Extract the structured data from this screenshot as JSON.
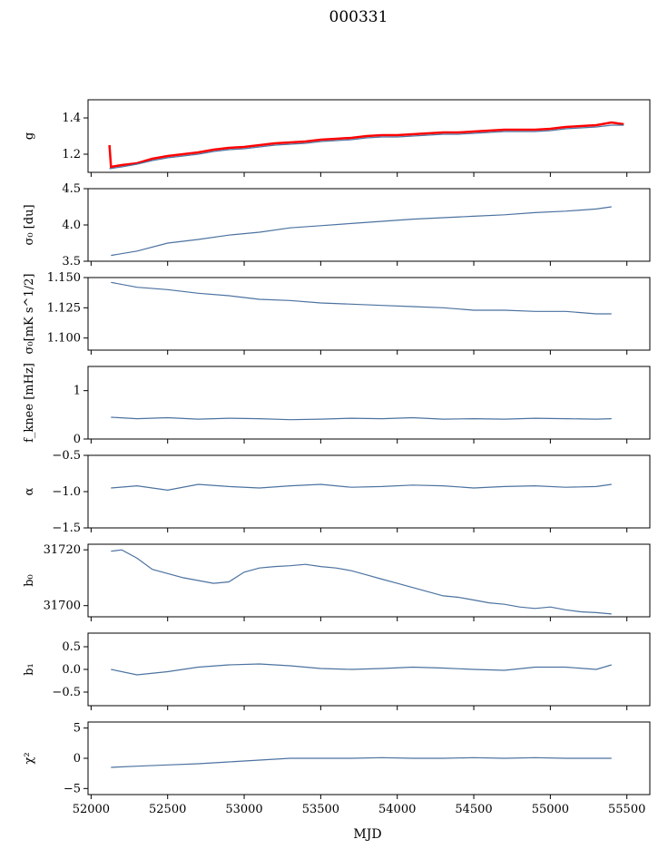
{
  "figure": {
    "title": "000331",
    "xlabel": "MJD"
  },
  "x_axis": {
    "range": [
      51980,
      55650
    ],
    "ticks": [
      52000,
      52500,
      53000,
      53500,
      54000,
      54500,
      55000,
      55500
    ]
  },
  "colors": {
    "series": "#4c72a0",
    "highlight": "#ff0000",
    "axes": "#000000"
  },
  "chart_data": [
    {
      "type": "line",
      "ylabel": "g",
      "ylim": [
        1.1,
        1.5
      ],
      "yticks": [
        1.2,
        1.4
      ],
      "ytick_labels": [
        "1.2",
        "1.4"
      ],
      "series": [
        {
          "color": "#ff0000",
          "x": [
            52120,
            52130,
            52200,
            52300,
            52400,
            52500,
            52600,
            52700,
            52800,
            52900,
            53000,
            53100,
            53200,
            53300,
            53400,
            53500,
            53600,
            53700,
            53800,
            53900,
            54000,
            54100,
            54200,
            54300,
            54400,
            54500,
            54600,
            54700,
            54800,
            54900,
            55000,
            55100,
            55200,
            55300,
            55400,
            55480
          ],
          "y": [
            1.25,
            1.13,
            1.14,
            1.15,
            1.175,
            1.19,
            1.2,
            1.21,
            1.225,
            1.235,
            1.24,
            1.25,
            1.26,
            1.265,
            1.27,
            1.28,
            1.285,
            1.29,
            1.3,
            1.305,
            1.305,
            1.31,
            1.315,
            1.32,
            1.32,
            1.325,
            1.33,
            1.335,
            1.335,
            1.335,
            1.34,
            1.35,
            1.355,
            1.36,
            1.375,
            1.365
          ]
        },
        {
          "color": "#4c72a0",
          "x": [
            52120,
            52200,
            52300,
            52400,
            52500,
            52600,
            52700,
            52800,
            52900,
            53000,
            53100,
            53200,
            53300,
            53400,
            53500,
            53600,
            53700,
            53800,
            53900,
            54000,
            54100,
            54200,
            54300,
            54400,
            54500,
            54600,
            54700,
            54800,
            54900,
            55000,
            55100,
            55200,
            55300,
            55400,
            55480
          ],
          "y": [
            1.12,
            1.13,
            1.145,
            1.165,
            1.18,
            1.19,
            1.2,
            1.215,
            1.225,
            1.23,
            1.24,
            1.25,
            1.255,
            1.26,
            1.27,
            1.275,
            1.28,
            1.29,
            1.295,
            1.295,
            1.3,
            1.305,
            1.31,
            1.31,
            1.315,
            1.32,
            1.325,
            1.325,
            1.325,
            1.33,
            1.34,
            1.345,
            1.35,
            1.36,
            1.36
          ]
        }
      ]
    },
    {
      "type": "line",
      "ylabel": "σ₀ [du]",
      "ylim": [
        3.5,
        4.5
      ],
      "yticks": [
        3.5,
        4.0,
        4.5
      ],
      "ytick_labels": [
        "3.5",
        "4.0",
        "4.5"
      ],
      "series": [
        {
          "color": "#4c72a0",
          "x": [
            52130,
            52300,
            52500,
            52700,
            52900,
            53100,
            53300,
            53500,
            53700,
            53900,
            54100,
            54300,
            54500,
            54700,
            54900,
            55100,
            55300,
            55400
          ],
          "y": [
            3.58,
            3.64,
            3.75,
            3.8,
            3.86,
            3.9,
            3.96,
            3.99,
            4.02,
            4.05,
            4.08,
            4.1,
            4.12,
            4.14,
            4.17,
            4.19,
            4.22,
            4.25
          ]
        }
      ]
    },
    {
      "type": "line",
      "ylabel": "σ₀[mK s^1/2]",
      "ylim": [
        1.09,
        1.15
      ],
      "yticks": [
        1.1,
        1.125,
        1.15
      ],
      "ytick_labels": [
        "1.100",
        "1.125",
        "1.150"
      ],
      "series": [
        {
          "color": "#4c72a0",
          "x": [
            52130,
            52300,
            52500,
            52700,
            52900,
            53100,
            53300,
            53500,
            53700,
            53900,
            54100,
            54300,
            54500,
            54700,
            54900,
            55100,
            55300,
            55400
          ],
          "y": [
            1.146,
            1.142,
            1.14,
            1.137,
            1.135,
            1.132,
            1.131,
            1.129,
            1.128,
            1.127,
            1.126,
            1.125,
            1.123,
            1.123,
            1.122,
            1.122,
            1.12,
            1.12
          ]
        }
      ]
    },
    {
      "type": "line",
      "ylabel": "f_knee [mHz]",
      "ylim": [
        0,
        1.5
      ],
      "yticks": [
        0,
        1
      ],
      "ytick_labels": [
        "0",
        "1"
      ],
      "series": [
        {
          "color": "#4c72a0",
          "x": [
            52130,
            52300,
            52500,
            52700,
            52900,
            53100,
            53300,
            53500,
            53700,
            53900,
            54100,
            54300,
            54500,
            54700,
            54900,
            55100,
            55300,
            55400
          ],
          "y": [
            0.45,
            0.42,
            0.44,
            0.41,
            0.43,
            0.42,
            0.4,
            0.41,
            0.43,
            0.42,
            0.44,
            0.41,
            0.42,
            0.41,
            0.43,
            0.42,
            0.41,
            0.42
          ]
        }
      ]
    },
    {
      "type": "line",
      "ylabel": "α",
      "ylim": [
        -1.5,
        -0.5
      ],
      "yticks": [
        -1.5,
        -1.0,
        -0.5
      ],
      "ytick_labels": [
        "−1.5",
        "−1.0",
        "−0.5"
      ],
      "series": [
        {
          "color": "#4c72a0",
          "x": [
            52130,
            52300,
            52500,
            52700,
            52900,
            53100,
            53300,
            53500,
            53700,
            53900,
            54100,
            54300,
            54500,
            54700,
            54900,
            55100,
            55300,
            55400
          ],
          "y": [
            -0.95,
            -0.92,
            -0.98,
            -0.9,
            -0.93,
            -0.95,
            -0.92,
            -0.9,
            -0.94,
            -0.93,
            -0.91,
            -0.92,
            -0.95,
            -0.93,
            -0.92,
            -0.94,
            -0.93,
            -0.9
          ]
        }
      ]
    },
    {
      "type": "line",
      "ylabel": "b₀",
      "ylim": [
        31696,
        31722
      ],
      "yticks": [
        31700,
        31720
      ],
      "ytick_labels": [
        "31700",
        "31720"
      ],
      "series": [
        {
          "color": "#4c72a0",
          "x": [
            52130,
            52200,
            52300,
            52400,
            52500,
            52600,
            52700,
            52800,
            52900,
            53000,
            53100,
            53200,
            53300,
            53400,
            53500,
            53600,
            53700,
            53800,
            53900,
            54000,
            54100,
            54200,
            54300,
            54400,
            54500,
            54600,
            54700,
            54800,
            54900,
            55000,
            55100,
            55200,
            55300,
            55400
          ],
          "y": [
            31719.5,
            31720,
            31717,
            31713,
            31711.5,
            31710,
            31709,
            31708,
            31708.5,
            31712,
            31713.5,
            31714,
            31714.3,
            31714.8,
            31714,
            31713.5,
            31712.5,
            31711,
            31709.5,
            31708,
            31706.5,
            31705,
            31703.5,
            31703,
            31702,
            31701,
            31700.5,
            31699.5,
            31699,
            31699.5,
            31698.5,
            31697.8,
            31697.5,
            31697
          ]
        }
      ]
    },
    {
      "type": "line",
      "ylabel": "b₁",
      "ylim": [
        -0.8,
        0.8
      ],
      "yticks": [
        -0.5,
        0.0,
        0.5
      ],
      "ytick_labels": [
        "−0.5",
        "0.0",
        "0.5"
      ],
      "series": [
        {
          "color": "#4c72a0",
          "x": [
            52130,
            52300,
            52500,
            52700,
            52900,
            53100,
            53300,
            53500,
            53700,
            53900,
            54100,
            54300,
            54500,
            54700,
            54900,
            55100,
            55300,
            55400
          ],
          "y": [
            0.0,
            -0.12,
            -0.05,
            0.05,
            0.1,
            0.12,
            0.08,
            0.02,
            0.0,
            0.02,
            0.05,
            0.03,
            0.0,
            -0.02,
            0.05,
            0.05,
            0.0,
            0.1
          ]
        }
      ]
    },
    {
      "type": "line",
      "ylabel": "χ²",
      "ylim": [
        -6,
        6
      ],
      "yticks": [
        -5,
        0,
        5
      ],
      "ytick_labels": [
        "−5",
        "0",
        "5"
      ],
      "series": [
        {
          "color": "#4c72a0",
          "x": [
            52130,
            52300,
            52500,
            52700,
            52900,
            53100,
            53300,
            53500,
            53700,
            53900,
            54100,
            54300,
            54500,
            54700,
            54900,
            55100,
            55300,
            55400
          ],
          "y": [
            -1.5,
            -1.3,
            -1.1,
            -0.9,
            -0.6,
            -0.3,
            0.0,
            0.0,
            0.0,
            0.1,
            0.0,
            0.0,
            0.1,
            0.0,
            0.1,
            0.0,
            0.0,
            0.0
          ]
        }
      ]
    }
  ]
}
